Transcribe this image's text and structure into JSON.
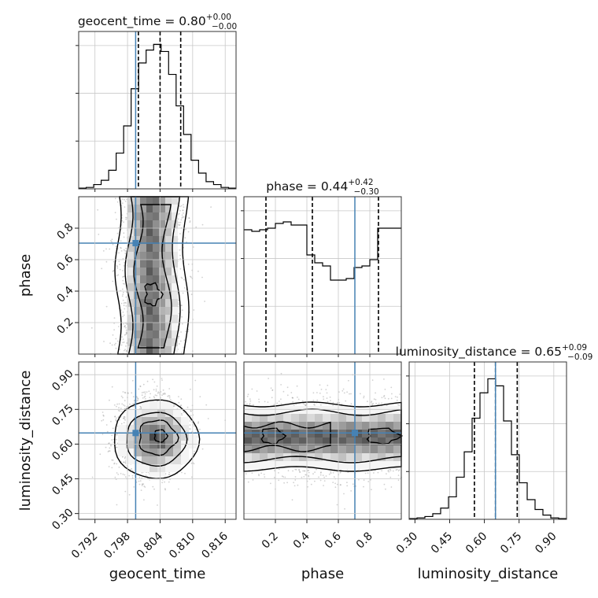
{
  "chart_data": {
    "type": "corner",
    "true_value_color": "#4682b4",
    "hist_color": "#000000",
    "grid": true,
    "parameters": [
      {
        "key": "geocent_time",
        "axis_label": "geocent_time",
        "range": [
          0.789,
          0.818
        ],
        "ticks": [
          "0.792",
          "0.798",
          "0.804",
          "0.810",
          "0.816"
        ],
        "injection": 0.7995,
        "title": {
          "prefix": "geocent_time = 0.80",
          "sup": "+0.00",
          "sub": "−0.00"
        },
        "quantiles": [
          0.8,
          0.804,
          0.8078
        ],
        "hist": [
          0.5,
          1,
          3,
          6,
          13,
          25,
          44,
          70,
          88,
          97,
          101,
          96,
          80,
          58,
          38,
          20,
          11,
          5,
          3,
          1,
          0.5
        ],
        "hist_ymax": 110
      },
      {
        "key": "phase",
        "axis_label": "phase",
        "range": [
          0.0,
          1.0
        ],
        "ticks": [
          "0.2",
          "0.4",
          "0.6",
          "0.8"
        ],
        "injection": 0.705,
        "title": {
          "prefix": "phase = 0.44",
          "sup": "+0.42",
          "sub": "−0.30"
        },
        "quantiles": [
          0.14,
          0.435,
          0.855
        ],
        "hist": [
          79,
          78,
          79,
          80,
          83,
          84,
          82,
          82,
          63,
          58,
          56,
          47,
          47,
          48,
          55,
          56,
          60,
          80,
          80,
          80
        ],
        "hist_ymax": 100
      },
      {
        "key": "luminosity_distance",
        "axis_label": "luminosity_distance",
        "range": [
          0.275,
          0.955
        ],
        "ticks": [
          "0.30",
          "0.45",
          "0.60",
          "0.75",
          "0.90"
        ],
        "injection": 0.648,
        "title": {
          "prefix": "luminosity_distance = 0.65",
          "sup": "+0.09",
          "sub": "−0.09"
        },
        "quantiles": [
          0.557,
          0.648,
          0.742
        ],
        "hist": [
          0.5,
          1,
          2,
          4,
          8,
          16,
          30,
          48,
          72,
          90,
          100,
          95,
          70,
          46,
          26,
          14,
          7,
          3,
          1,
          0.5
        ],
        "hist_ymax": 112
      }
    ],
    "pairs": [
      {
        "x": "geocent_time",
        "y": "phase"
      },
      {
        "x": "geocent_time",
        "y": "luminosity_distance"
      },
      {
        "x": "phase",
        "y": "luminosity_distance"
      }
    ]
  }
}
